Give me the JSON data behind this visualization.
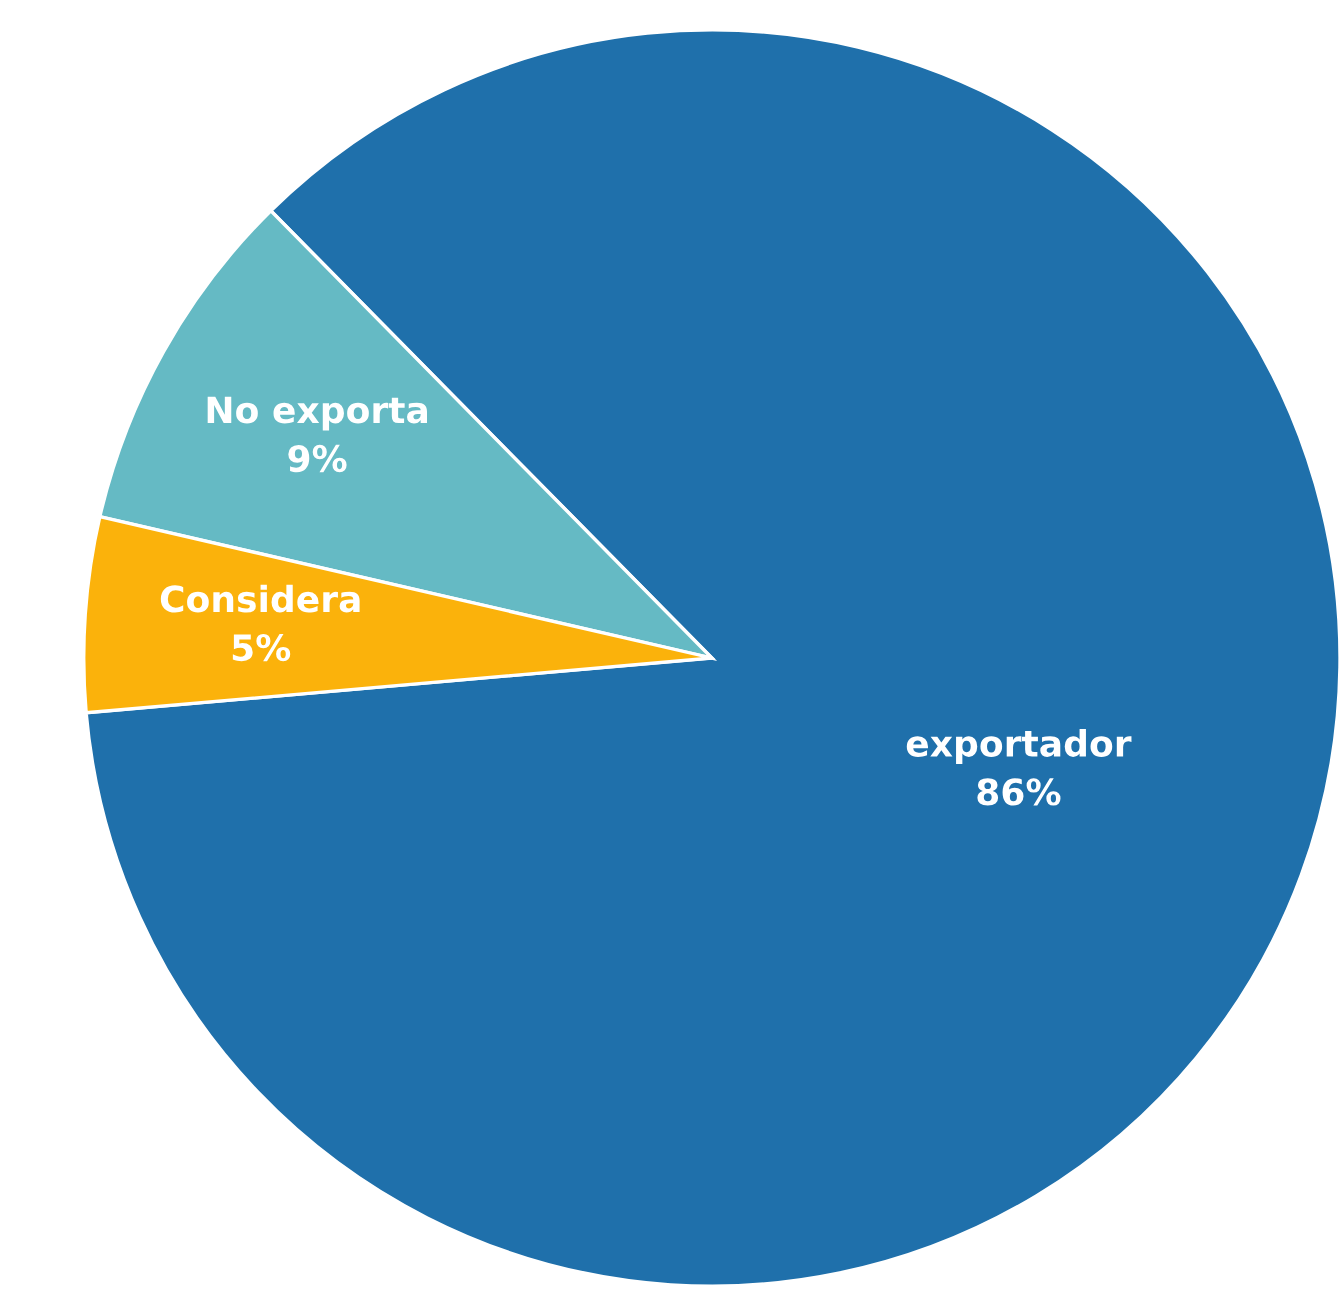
{
  "chart_data": {
    "type": "pie",
    "categories": [
      "exportador",
      "No exporta",
      "Considera"
    ],
    "values": [
      86,
      9,
      5
    ],
    "value_labels": [
      "86%",
      "9%",
      "5%"
    ],
    "colors": [
      "#1f70ab",
      "#65bac4",
      "#fbb20b"
    ]
  }
}
